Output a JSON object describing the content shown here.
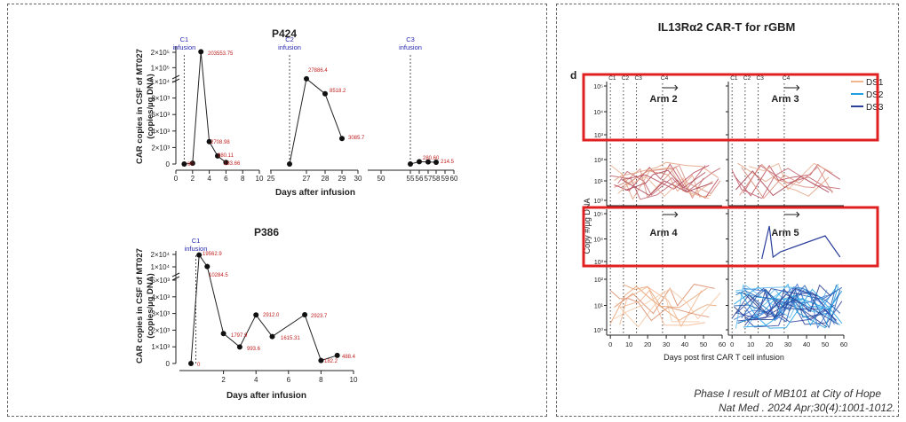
{
  "left": {
    "ylabel_line1": "CAR copies in CSF of MT027",
    "ylabel_line2": "(copies/µg DNA)",
    "top": {
      "title": "P424",
      "xlabel": "Days after infusion",
      "infusion_markers": [
        {
          "day": 1,
          "label1": "C1",
          "label2": "infusion"
        },
        {
          "day": 26,
          "label1": "C2",
          "label2": "infusion"
        },
        {
          "day": 55,
          "label1": "C3",
          "label2": "infusion"
        }
      ],
      "seg1_ticks": [
        "0",
        "2",
        "4",
        "6",
        "8",
        "10"
      ],
      "seg2_ticks": [
        "25",
        "27",
        "28",
        "29",
        "30"
      ],
      "seg3_ticks": [
        "50",
        "55",
        "56",
        "57",
        "58",
        "59",
        "60"
      ],
      "y_low_ticks": [
        "0",
        "2×10³",
        "4×10³",
        "6×10³",
        "8×10³",
        "1×10⁴"
      ],
      "y_high_ticks": [
        "1×10⁵",
        "2×10⁵"
      ],
      "value_labels": [
        "203553.75",
        "27886.4",
        "8518.2",
        "3085.7",
        "2708.98",
        "980.11",
        "183.66",
        "90",
        "280.60",
        "214.5"
      ]
    },
    "bottom": {
      "title": "P386",
      "xlabel": "Days after infusion",
      "infusion_marker": {
        "label1": "C1",
        "label2": "infusion"
      },
      "x_ticks": [
        "2",
        "4",
        "6",
        "8",
        "10"
      ],
      "y_low_ticks": [
        "0",
        "1×10³",
        "2×10³",
        "3×10³",
        "4×10³",
        "5×10³"
      ],
      "y_high_ticks": [
        "1×10⁴",
        "2×10⁴"
      ],
      "value_labels": [
        "0",
        "19562.9",
        "10284.5",
        "1797.9",
        "993.6",
        "2912.0",
        "1615.31",
        "2923.7",
        "182.2",
        "488.4"
      ]
    }
  },
  "right": {
    "title": "IL13Rα2 CAR-T for rGBM",
    "panel_letter": "d",
    "xlabel": "Days post first CAR T cell infusion",
    "ylabel": "Copy #/µg DNA",
    "x_ticks": [
      "0",
      "10",
      "20",
      "30",
      "40",
      "50",
      "60"
    ],
    "top_ticks": [
      "C1",
      "C2",
      "C3",
      "C4"
    ],
    "arms": [
      "Arm 2",
      "Arm 3",
      "Arm 4",
      "Arm 5"
    ],
    "legend": [
      {
        "name": "DS1",
        "color": "#f2b58e"
      },
      {
        "name": "DS2",
        "color": "#1f9fe0"
      },
      {
        "name": "DS3",
        "color": "#2b3f9c"
      }
    ],
    "y_ticks_upper": [
      "10⁵",
      "10⁴",
      "10³"
    ],
    "y_ticks_lower": [
      "10²",
      "10¹",
      "10⁰"
    ],
    "highlight_color": "#e02020",
    "citation_line1": "Phase I result of MB101 at City of Hope",
    "citation_line2": "Nat Med . 2024 Apr;30(4):1001-1012."
  },
  "chart_data": [
    {
      "type": "line",
      "title": "P424",
      "xlabel": "Days after infusion",
      "ylabel": "CAR copies in CSF of MT027 (copies/µg DNA)",
      "x_break_segments": [
        [
          0,
          10
        ],
        [
          25,
          30
        ],
        [
          50,
          60
        ]
      ],
      "series": [
        {
          "x": [
            1,
            2,
            3,
            4,
            5,
            6
          ],
          "y": [
            0,
            90,
            203553.75,
            2708.98,
            980.11,
            183.66
          ]
        },
        {
          "x": [
            26,
            27,
            28,
            29
          ],
          "y": [
            0,
            27886.4,
            8518.2,
            3085.7
          ]
        },
        {
          "x": [
            55,
            56,
            57,
            58
          ],
          "y": [
            0,
            280.6,
            250,
            214.5
          ]
        }
      ]
    },
    {
      "type": "line",
      "title": "P386",
      "xlabel": "Days after infusion",
      "ylabel": "CAR copies in CSF of MT027 (copies/µg DNA)",
      "series": [
        {
          "x": [
            0,
            0.5,
            1,
            2,
            3,
            4,
            5,
            7,
            8,
            9
          ],
          "y": [
            0,
            19562.9,
            10284.5,
            1797.9,
            993.6,
            2912.0,
            1615.31,
            2923.7,
            182.2,
            488.4
          ]
        }
      ]
    },
    {
      "type": "line",
      "title": "IL13Rα2 CAR-T for rGBM",
      "xlabel": "Days post first CAR T cell infusion",
      "ylabel": "Copy #/µg DNA",
      "log_scale": true,
      "legend": [
        "DS1",
        "DS2",
        "DS3"
      ]
    }
  ]
}
